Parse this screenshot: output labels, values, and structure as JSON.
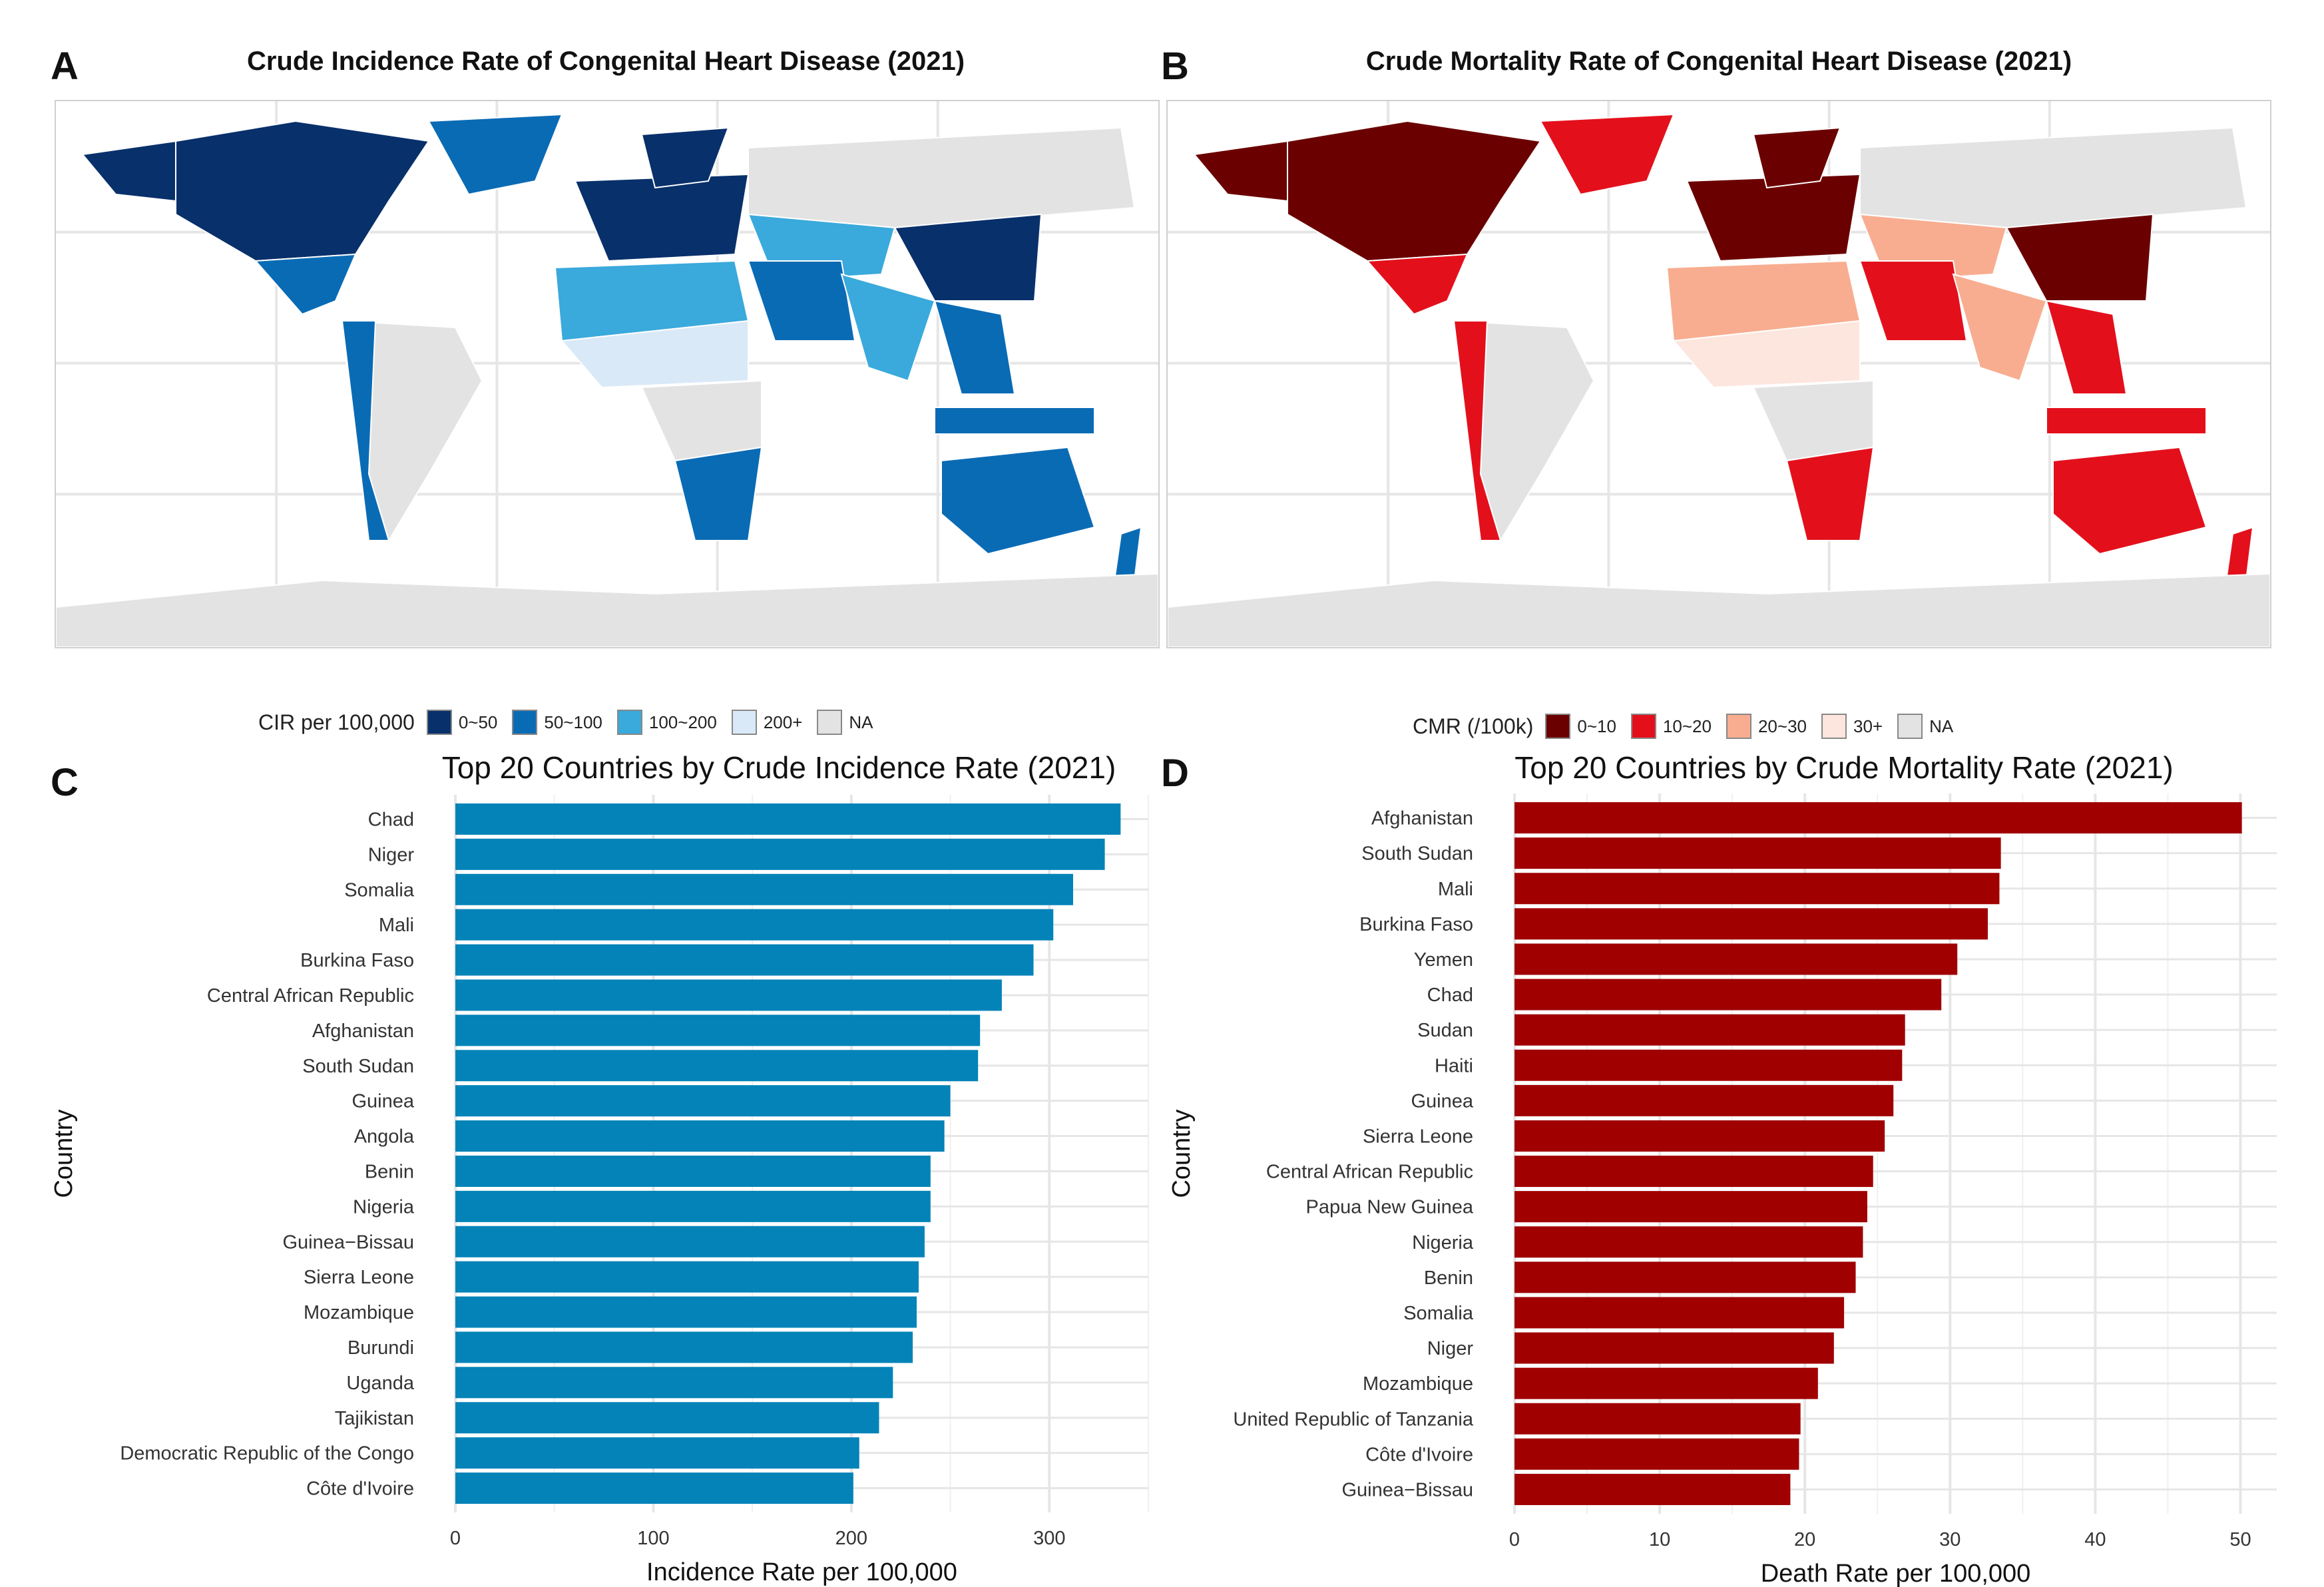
{
  "panels": {
    "a": {
      "letter": "A",
      "title": "Crude Incidence Rate of Congenital Heart Disease (2021)"
    },
    "b": {
      "letter": "B",
      "title": "Crude Mortality Rate of Congenital Heart Disease (2021)"
    },
    "c": {
      "letter": "C"
    },
    "d": {
      "letter": "D"
    }
  },
  "legends": {
    "cir": {
      "title": "CIR per 100,000",
      "items": [
        {
          "label": "0~50",
          "color": "#08306b"
        },
        {
          "label": "50~100",
          "color": "#0a6bb5"
        },
        {
          "label": "100~200",
          "color": "#3aa9dc"
        },
        {
          "label": "200+",
          "color": "#d9e9f7"
        },
        {
          "label": "NA",
          "color": "#e3e3e3"
        }
      ]
    },
    "cmr": {
      "title": "CMR (/100k)",
      "items": [
        {
          "label": "0~10",
          "color": "#6b0000"
        },
        {
          "label": "10~20",
          "color": "#e3101c"
        },
        {
          "label": "20~30",
          "color": "#f8ad90"
        },
        {
          "label": "30+",
          "color": "#fde6dd"
        },
        {
          "label": "NA",
          "color": "#e3e3e3"
        }
      ]
    }
  },
  "colors": {
    "incidence_bar": "#0383b8",
    "mortality_bar": "#a00000",
    "na_land": "#e3e3e3",
    "grid": "#e6e6e6"
  },
  "chart_data": [
    {
      "type": "bar",
      "orientation": "horizontal",
      "title": "Top 20 Countries by Crude Incidence Rate (2021)",
      "xlabel": "Incidence Rate per 100,000",
      "ylabel": "Country",
      "xlim": [
        0,
        350
      ],
      "xticks": [
        0,
        100,
        200,
        300
      ],
      "categories": [
        "Chad",
        "Niger",
        "Somalia",
        "Mali",
        "Burkina Faso",
        "Central African Republic",
        "Afghanistan",
        "South Sudan",
        "Guinea",
        "Angola",
        "Benin",
        "Nigeria",
        "Guinea−Bissau",
        "Sierra Leone",
        "Mozambique",
        "Burundi",
        "Uganda",
        "Tajikistan",
        "Democratic Republic of the Congo",
        "Côte d'Ivoire"
      ],
      "values": [
        336,
        328,
        312,
        302,
        292,
        276,
        265,
        264,
        250,
        247,
        240,
        240,
        237,
        234,
        233,
        231,
        221,
        214,
        204,
        201
      ]
    },
    {
      "type": "bar",
      "orientation": "horizontal",
      "title": "Top 20 Countries by Crude Mortality Rate (2021)",
      "xlabel": "Death Rate per 100,000",
      "ylabel": "Country",
      "xlim": [
        0,
        52.5
      ],
      "xticks": [
        0,
        10,
        20,
        30,
        40,
        50
      ],
      "categories": [
        "Afghanistan",
        "South Sudan",
        "Mali",
        "Burkina Faso",
        "Yemen",
        "Chad",
        "Sudan",
        "Haiti",
        "Guinea",
        "Sierra Leone",
        "Central African Republic",
        "Papua New Guinea",
        "Nigeria",
        "Benin",
        "Somalia",
        "Niger",
        "Mozambique",
        "United Republic of Tanzania",
        "Côte d'Ivoire",
        "Guinea−Bissau"
      ],
      "values": [
        50.1,
        33.5,
        33.4,
        32.6,
        30.5,
        29.4,
        26.9,
        26.7,
        26.1,
        25.5,
        24.7,
        24.3,
        24.0,
        23.5,
        22.7,
        22.0,
        20.9,
        19.7,
        19.6,
        19.0
      ]
    }
  ]
}
